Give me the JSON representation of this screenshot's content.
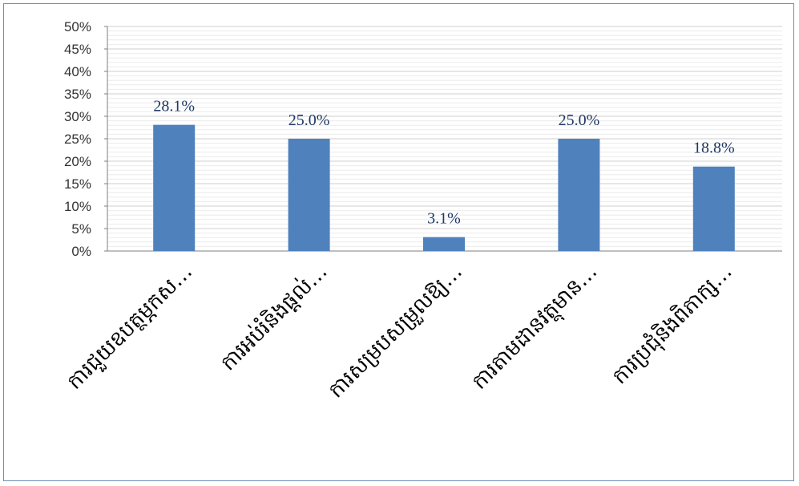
{
  "chart_data": {
    "type": "bar",
    "categories": [
      "ការជួយឧបត្ថម្ភកស…",
      "ការអប់រំនិងផ្ដល់…",
      "ការសម្របសម្រួលឱ្យ…",
      "ការតាមដានវត្ថុមាន…",
      "ការប្រជុំនិងពិភាក្ស…"
    ],
    "values": [
      28.1,
      25.0,
      3.1,
      25.0,
      18.8
    ],
    "data_labels": [
      "28.1%",
      "25.0%",
      "3.1%",
      "25.0%",
      "18.8%"
    ],
    "y_ticks": [
      "0%",
      "5%",
      "10%",
      "15%",
      "20%",
      "25%",
      "30%",
      "35%",
      "40%",
      "45%",
      "50%"
    ],
    "ylim": [
      0,
      50
    ],
    "grid": true,
    "legend": "none",
    "bar_color": "#4f81bd",
    "title": "",
    "xlabel": "",
    "ylabel": ""
  }
}
